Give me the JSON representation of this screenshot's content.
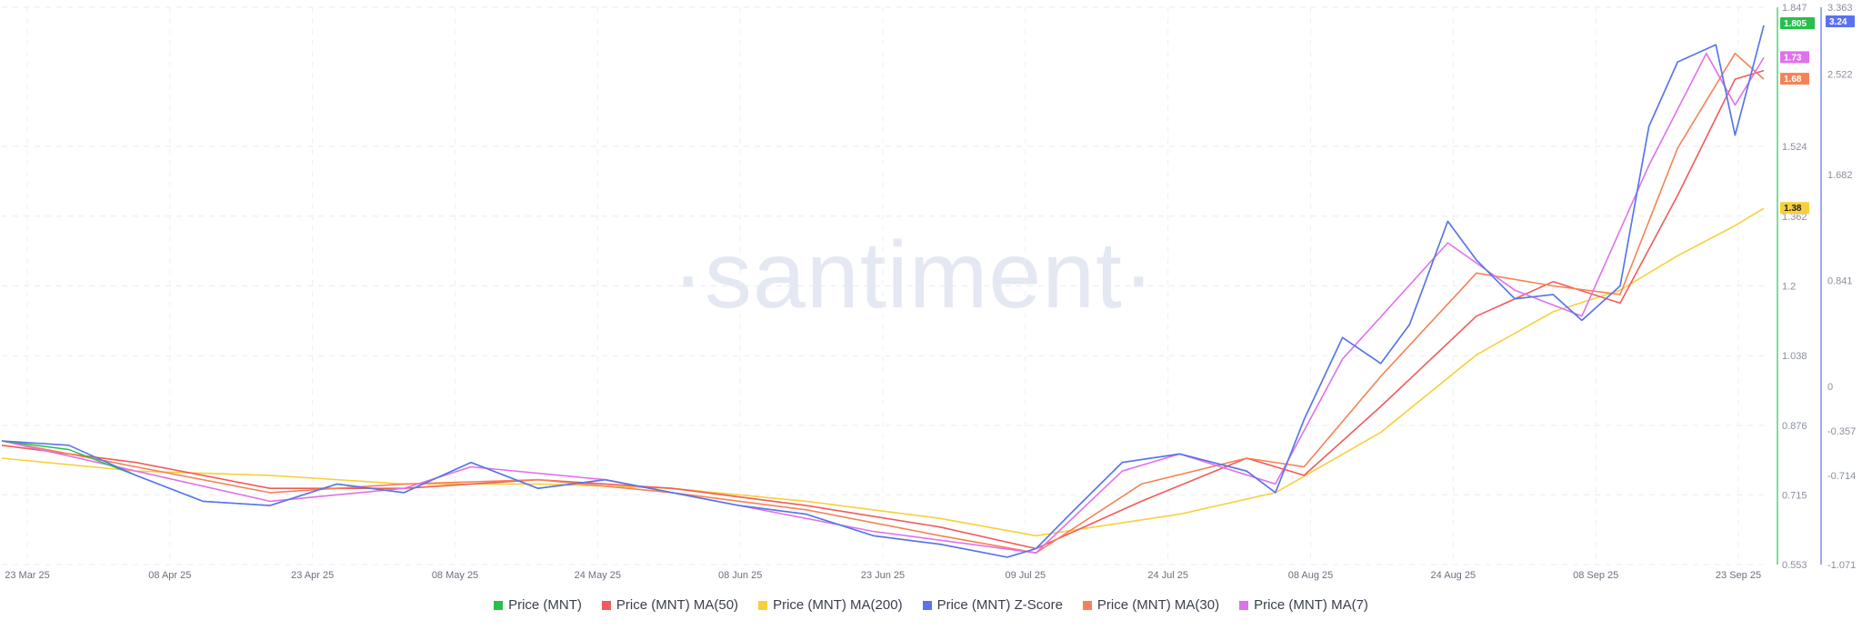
{
  "chart_data": {
    "type": "line",
    "watermark": "·santiment·",
    "x_ticks": [
      "23 Mar 25",
      "08 Apr 25",
      "23 Apr 25",
      "08 May 25",
      "24 May 25",
      "08 Jun 25",
      "23 Jun 25",
      "09 Jul 25",
      "24 Jul 25",
      "08 Aug 25",
      "24 Aug 25",
      "08 Sep 25",
      "23 Sep 25"
    ],
    "x_range": [
      "2025-03-23",
      "2025-09-23"
    ],
    "y_axis_price": {
      "ticks": [
        "0.553",
        "0.715",
        "0.876",
        "1.038",
        "1.2",
        "1.362",
        "1.524",
        "1.847"
      ],
      "ylim": [
        0.553,
        1.847
      ]
    },
    "y_axis_zscore": {
      "ticks": [
        "-1.071",
        "-0.714",
        "-0.357",
        "0",
        "0.841",
        "1.682",
        "2.522",
        "3.363"
      ]
    },
    "current_values": [
      {
        "label": "1.805",
        "series": "Price (MNT)",
        "color": "#26c04b",
        "value": 1.805
      },
      {
        "label": "3.24",
        "series": "Price (MNT) Z-Score",
        "color": "#5b72f0",
        "value": 1.805
      },
      {
        "label": "1.73",
        "series": "Price (MNT) MA(7)",
        "color": "#e071ec",
        "value": 1.73
      },
      {
        "label": "1.68",
        "series": "Price (MNT) MA(30)",
        "color": "#f58255",
        "value": 1.68
      },
      {
        "label": "1.38",
        "series": "Price (MNT) MA(200)",
        "color": "#f7d039",
        "value": 1.38
      }
    ],
    "series": [
      {
        "name": "Price (MNT)",
        "color": "#26c04b",
        "points": [
          [
            "2025-03-23",
            0.84
          ],
          [
            "2025-03-30",
            0.82
          ],
          [
            "2025-04-06",
            0.76
          ],
          [
            "2025-04-13",
            0.7
          ],
          [
            "2025-04-20",
            0.69
          ],
          [
            "2025-04-27",
            0.74
          ],
          [
            "2025-05-04",
            0.72
          ],
          [
            "2025-05-11",
            0.79
          ],
          [
            "2025-05-18",
            0.73
          ],
          [
            "2025-05-25",
            0.75
          ],
          [
            "2025-06-01",
            0.72
          ],
          [
            "2025-06-08",
            0.69
          ],
          [
            "2025-06-15",
            0.67
          ],
          [
            "2025-06-22",
            0.62
          ],
          [
            "2025-06-29",
            0.6
          ],
          [
            "2025-07-06",
            0.57
          ],
          [
            "2025-07-09",
            0.59
          ],
          [
            "2025-07-13",
            0.68
          ],
          [
            "2025-07-18",
            0.79
          ],
          [
            "2025-07-24",
            0.81
          ],
          [
            "2025-07-31",
            0.77
          ],
          [
            "2025-08-03",
            0.72
          ],
          [
            "2025-08-06",
            0.89
          ],
          [
            "2025-08-10",
            1.08
          ],
          [
            "2025-08-14",
            1.02
          ],
          [
            "2025-08-17",
            1.11
          ],
          [
            "2025-08-21",
            1.35
          ],
          [
            "2025-08-24",
            1.26
          ],
          [
            "2025-08-28",
            1.17
          ],
          [
            "2025-09-01",
            1.18
          ],
          [
            "2025-09-04",
            1.12
          ],
          [
            "2025-09-08",
            1.2
          ],
          [
            "2025-09-11",
            1.57
          ],
          [
            "2025-09-14",
            1.72
          ],
          [
            "2025-09-18",
            1.76
          ],
          [
            "2025-09-20",
            1.55
          ],
          [
            "2025-09-23",
            1.805
          ]
        ]
      },
      {
        "name": "Price (MNT) MA(50)",
        "color": "#f15b5b",
        "points": [
          [
            "2025-03-23",
            0.83
          ],
          [
            "2025-04-06",
            0.79
          ],
          [
            "2025-04-20",
            0.73
          ],
          [
            "2025-05-04",
            0.73
          ],
          [
            "2025-05-18",
            0.75
          ],
          [
            "2025-06-01",
            0.73
          ],
          [
            "2025-06-15",
            0.69
          ],
          [
            "2025-06-29",
            0.64
          ],
          [
            "2025-07-09",
            0.59
          ],
          [
            "2025-07-20",
            0.7
          ],
          [
            "2025-07-31",
            0.8
          ],
          [
            "2025-08-06",
            0.76
          ],
          [
            "2025-08-14",
            0.92
          ],
          [
            "2025-08-24",
            1.13
          ],
          [
            "2025-09-01",
            1.21
          ],
          [
            "2025-09-08",
            1.16
          ],
          [
            "2025-09-14",
            1.41
          ],
          [
            "2025-09-20",
            1.68
          ],
          [
            "2025-09-23",
            1.7
          ]
        ]
      },
      {
        "name": "Price (MNT) MA(200)",
        "color": "#f7d039",
        "points": [
          [
            "2025-03-23",
            0.8
          ],
          [
            "2025-04-06",
            0.77
          ],
          [
            "2025-04-20",
            0.76
          ],
          [
            "2025-05-04",
            0.74
          ],
          [
            "2025-05-18",
            0.74
          ],
          [
            "2025-06-01",
            0.73
          ],
          [
            "2025-06-15",
            0.7
          ],
          [
            "2025-06-29",
            0.66
          ],
          [
            "2025-07-09",
            0.62
          ],
          [
            "2025-07-24",
            0.67
          ],
          [
            "2025-08-03",
            0.72
          ],
          [
            "2025-08-14",
            0.86
          ],
          [
            "2025-08-24",
            1.04
          ],
          [
            "2025-09-01",
            1.14
          ],
          [
            "2025-09-08",
            1.19
          ],
          [
            "2025-09-14",
            1.27
          ],
          [
            "2025-09-20",
            1.34
          ],
          [
            "2025-09-23",
            1.38
          ]
        ]
      },
      {
        "name": "Price (MNT) Z-Score",
        "color": "#5b72f0",
        "points": [
          [
            "2025-03-23",
            0.84
          ],
          [
            "2025-03-30",
            0.83
          ],
          [
            "2025-04-06",
            0.76
          ],
          [
            "2025-04-13",
            0.7
          ],
          [
            "2025-04-20",
            0.69
          ],
          [
            "2025-04-27",
            0.74
          ],
          [
            "2025-05-04",
            0.72
          ],
          [
            "2025-05-11",
            0.79
          ],
          [
            "2025-05-18",
            0.73
          ],
          [
            "2025-05-25",
            0.75
          ],
          [
            "2025-06-01",
            0.72
          ],
          [
            "2025-06-08",
            0.69
          ],
          [
            "2025-06-15",
            0.67
          ],
          [
            "2025-06-22",
            0.62
          ],
          [
            "2025-06-29",
            0.6
          ],
          [
            "2025-07-06",
            0.57
          ],
          [
            "2025-07-09",
            0.59
          ],
          [
            "2025-07-13",
            0.68
          ],
          [
            "2025-07-18",
            0.79
          ],
          [
            "2025-07-24",
            0.81
          ],
          [
            "2025-07-31",
            0.77
          ],
          [
            "2025-08-03",
            0.72
          ],
          [
            "2025-08-06",
            0.89
          ],
          [
            "2025-08-10",
            1.08
          ],
          [
            "2025-08-14",
            1.02
          ],
          [
            "2025-08-17",
            1.11
          ],
          [
            "2025-08-21",
            1.35
          ],
          [
            "2025-08-24",
            1.26
          ],
          [
            "2025-08-28",
            1.17
          ],
          [
            "2025-09-01",
            1.18
          ],
          [
            "2025-09-04",
            1.12
          ],
          [
            "2025-09-08",
            1.2
          ],
          [
            "2025-09-11",
            1.57
          ],
          [
            "2025-09-14",
            1.72
          ],
          [
            "2025-09-18",
            1.76
          ],
          [
            "2025-09-20",
            1.55
          ],
          [
            "2025-09-23",
            1.805
          ]
        ]
      },
      {
        "name": "Price (MNT) MA(30)",
        "color": "#f58255",
        "points": [
          [
            "2025-03-23",
            0.84
          ],
          [
            "2025-04-06",
            0.78
          ],
          [
            "2025-04-20",
            0.72
          ],
          [
            "2025-05-04",
            0.74
          ],
          [
            "2025-05-18",
            0.75
          ],
          [
            "2025-06-01",
            0.72
          ],
          [
            "2025-06-15",
            0.68
          ],
          [
            "2025-06-29",
            0.62
          ],
          [
            "2025-07-09",
            0.58
          ],
          [
            "2025-07-20",
            0.74
          ],
          [
            "2025-07-31",
            0.8
          ],
          [
            "2025-08-06",
            0.78
          ],
          [
            "2025-08-14",
            0.99
          ],
          [
            "2025-08-24",
            1.23
          ],
          [
            "2025-09-01",
            1.2
          ],
          [
            "2025-09-08",
            1.18
          ],
          [
            "2025-09-14",
            1.52
          ],
          [
            "2025-09-20",
            1.74
          ],
          [
            "2025-09-23",
            1.68
          ]
        ]
      },
      {
        "name": "Price (MNT) MA(7)",
        "color": "#e071ec",
        "points": [
          [
            "2025-03-23",
            0.84
          ],
          [
            "2025-04-06",
            0.77
          ],
          [
            "2025-04-20",
            0.7
          ],
          [
            "2025-05-04",
            0.73
          ],
          [
            "2025-05-11",
            0.78
          ],
          [
            "2025-05-25",
            0.75
          ],
          [
            "2025-06-08",
            0.69
          ],
          [
            "2025-06-22",
            0.63
          ],
          [
            "2025-07-09",
            0.58
          ],
          [
            "2025-07-18",
            0.77
          ],
          [
            "2025-07-24",
            0.81
          ],
          [
            "2025-08-03",
            0.74
          ],
          [
            "2025-08-10",
            1.03
          ],
          [
            "2025-08-21",
            1.3
          ],
          [
            "2025-08-28",
            1.19
          ],
          [
            "2025-09-04",
            1.13
          ],
          [
            "2025-09-11",
            1.48
          ],
          [
            "2025-09-17",
            1.74
          ],
          [
            "2025-09-20",
            1.62
          ],
          [
            "2025-09-23",
            1.73
          ]
        ]
      }
    ],
    "legend": [
      "Price (MNT)",
      "Price (MNT) MA(50)",
      "Price (MNT) MA(200)",
      "Price (MNT) Z-Score",
      "Price (MNT) MA(30)",
      "Price (MNT) MA(7)"
    ],
    "legend_position": "bottom-center",
    "grid": true
  }
}
